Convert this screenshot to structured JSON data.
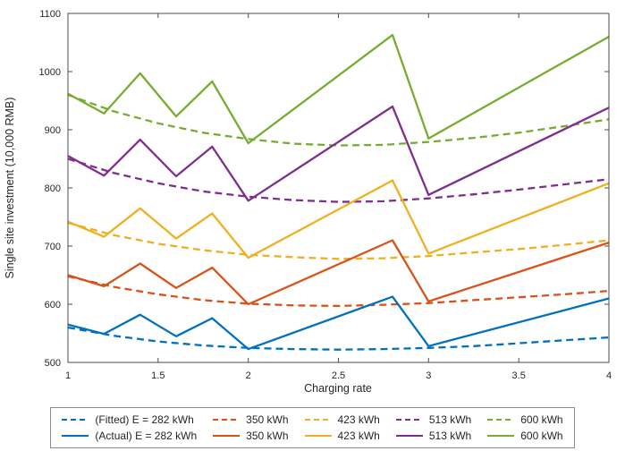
{
  "chart_data": {
    "type": "line",
    "title": "",
    "xlabel": "Charging rate",
    "ylabel": "Single site investment (10,000 RMB)",
    "xlim": [
      1,
      4
    ],
    "ylim": [
      500,
      1100
    ],
    "xticks": [
      1,
      1.5,
      2,
      2.5,
      3,
      3.5,
      4
    ],
    "xtick_labels": [
      "1",
      "1.5",
      "2",
      "2.5",
      "3",
      "3.5",
      "4"
    ],
    "yticks": [
      500,
      600,
      700,
      800,
      900,
      1000,
      1100
    ],
    "ytick_labels": [
      "500",
      "600",
      "700",
      "800",
      "900",
      "1000",
      "1100"
    ],
    "grid": false,
    "axis_color": "#4d4d4d",
    "legend_position": "bottom",
    "series": [
      {
        "name": "(Fitted) E = 282 kWh",
        "style": "dashed",
        "color": "#0072BD",
        "x": [
          1,
          1.25,
          1.5,
          1.75,
          2,
          2.25,
          2.5,
          2.75,
          3,
          3.25,
          3.5,
          3.75,
          4
        ],
        "values": [
          560,
          546,
          536,
          529,
          525,
          523,
          522,
          523,
          525,
          528,
          533,
          538,
          543
        ]
      },
      {
        "name": "350 kWh",
        "style": "dashed",
        "color": "#D95319",
        "x": [
          1,
          1.25,
          1.5,
          1.75,
          2,
          2.25,
          2.5,
          2.75,
          3,
          3.25,
          3.5,
          3.75,
          4
        ],
        "values": [
          648,
          630,
          617,
          607,
          601,
          598,
          597,
          599,
          602,
          607,
          612,
          617,
          623
        ]
      },
      {
        "name": "423 kWh",
        "style": "dashed",
        "color": "#EDB120",
        "x": [
          1,
          1.25,
          1.5,
          1.75,
          2,
          2.25,
          2.5,
          2.75,
          3,
          3.25,
          3.5,
          3.75,
          4
        ],
        "values": [
          740,
          719,
          704,
          693,
          685,
          681,
          678,
          679,
          683,
          689,
          695,
          702,
          710
        ]
      },
      {
        "name": "513 kWh",
        "style": "dashed",
        "color": "#7E2F8E",
        "x": [
          1,
          1.25,
          1.5,
          1.75,
          2,
          2.25,
          2.5,
          2.75,
          3,
          3.25,
          3.5,
          3.75,
          4
        ],
        "values": [
          850,
          826,
          808,
          794,
          785,
          779,
          776,
          777,
          782,
          789,
          797,
          806,
          815
        ]
      },
      {
        "name": "600 kWh",
        "style": "dashed",
        "color": "#77AC30",
        "x": [
          1,
          1.25,
          1.5,
          1.75,
          2,
          2.25,
          2.5,
          2.75,
          3,
          3.25,
          3.5,
          3.75,
          4
        ],
        "values": [
          960,
          932,
          911,
          895,
          884,
          876,
          873,
          874,
          879,
          886,
          895,
          906,
          918
        ]
      },
      {
        "name": "(Actual) E = 282 kWh",
        "style": "solid",
        "color": "#0072BD",
        "x": [
          1,
          1.2,
          1.4,
          1.6,
          1.8,
          2,
          2.8,
          3,
          4
        ],
        "values": [
          565,
          549,
          582,
          545,
          576,
          523,
          613,
          528,
          610
        ]
      },
      {
        "name": "350 kWh",
        "style": "solid",
        "color": "#D95319",
        "x": [
          1,
          1.2,
          1.4,
          1.6,
          1.8,
          2,
          2.8,
          3,
          4
        ],
        "values": [
          650,
          631,
          670,
          628,
          663,
          600,
          710,
          605,
          706
        ]
      },
      {
        "name": "423 kWh",
        "style": "solid",
        "color": "#EDB120",
        "x": [
          1,
          1.2,
          1.4,
          1.6,
          1.8,
          2,
          2.8,
          3,
          4
        ],
        "values": [
          742,
          716,
          765,
          713,
          756,
          680,
          813,
          687,
          808
        ]
      },
      {
        "name": "513 kWh",
        "style": "solid",
        "color": "#7E2F8E",
        "x": [
          1,
          1.2,
          1.4,
          1.6,
          1.8,
          2,
          2.8,
          3,
          4
        ],
        "values": [
          855,
          821,
          883,
          820,
          871,
          778,
          940,
          788,
          938
        ]
      },
      {
        "name": "600 kWh",
        "style": "solid",
        "color": "#77AC30",
        "x": [
          1,
          1.2,
          1.4,
          1.6,
          1.8,
          2,
          2.8,
          3,
          4
        ],
        "values": [
          962,
          928,
          997,
          923,
          983,
          877,
          1063,
          885,
          1060
        ]
      }
    ]
  }
}
